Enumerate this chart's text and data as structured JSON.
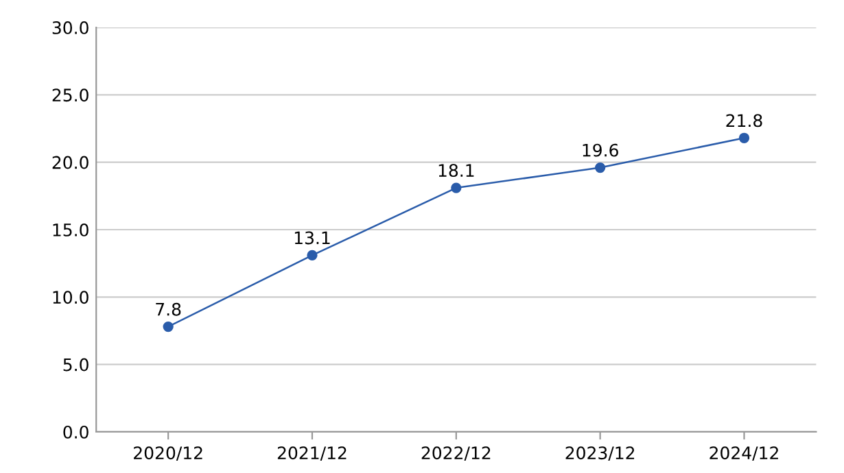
{
  "chart_data": {
    "type": "line",
    "categories": [
      "2020/12",
      "2021/12",
      "2022/12",
      "2023/12",
      "2024/12"
    ],
    "series": [
      {
        "color": "#2a5caa",
        "values": [
          7.8,
          13.1,
          18.1,
          19.6,
          21.8
        ]
      }
    ],
    "ylim": [
      0,
      30
    ],
    "yticks": [
      {
        "value": 0,
        "label": "0.0"
      },
      {
        "value": 5,
        "label": "5.0"
      },
      {
        "value": 10,
        "label": "10.0"
      },
      {
        "value": 15,
        "label": "15.0"
      },
      {
        "value": 20,
        "label": "20.0"
      },
      {
        "value": 25,
        "label": "25.0"
      },
      {
        "value": 30,
        "label": "30.0"
      }
    ],
    "grid": "y",
    "marker": "circle",
    "line_style": "solid",
    "data_labels": true
  }
}
